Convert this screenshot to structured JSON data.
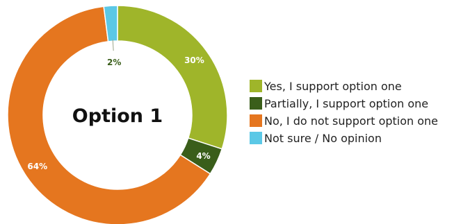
{
  "chart_data": {
    "type": "pie",
    "variant": "donut",
    "center_label": "Option 1",
    "categories": [
      "Yes, I support option one",
      "Partially, I support option one",
      "No, I do not support option one",
      "Not sure / No opinion"
    ],
    "values": [
      30,
      4,
      64,
      2
    ],
    "value_labels": [
      "30%",
      "4%",
      "64%",
      "2%"
    ],
    "colors": [
      "#9fb52a",
      "#3a5e1a",
      "#e5761f",
      "#5bc8e6"
    ],
    "legend_position": "right"
  }
}
